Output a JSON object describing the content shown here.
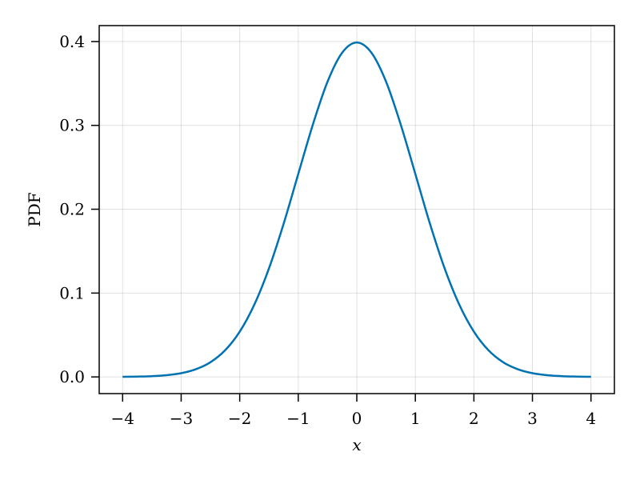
{
  "chart_data": {
    "type": "line",
    "title": "",
    "xlabel": "x",
    "ylabel": "PDF",
    "xlim": [
      -4.4,
      4.4
    ],
    "ylim": [
      -0.0199,
      0.419
    ],
    "grid": true,
    "xticks": [
      -4,
      -3,
      -2,
      -1,
      0,
      1,
      2,
      3,
      4
    ],
    "xtick_labels": [
      "−4",
      "−3",
      "−2",
      "−1",
      "0",
      "1",
      "2",
      "3",
      "4"
    ],
    "yticks": [
      0.0,
      0.1,
      0.2,
      0.3,
      0.4
    ],
    "ytick_labels": [
      "0.0",
      "0.1",
      "0.2",
      "0.3",
      "0.4"
    ],
    "line_color": "#0072b2",
    "series": [
      {
        "x": [
          -4,
          -3.75,
          -3.5,
          -3.25,
          -3,
          -2.75,
          -2.5,
          -2.25,
          -2,
          -1.75,
          -1.5,
          -1.25,
          -1,
          -0.75,
          -0.5,
          -0.25,
          0,
          0.25,
          0.5,
          0.75,
          1,
          1.25,
          1.5,
          1.75,
          2,
          2.25,
          2.5,
          2.75,
          3,
          3.25,
          3.5,
          3.75,
          4
        ],
        "y": [
          0.0001,
          0.0004,
          0.0009,
          0.002,
          0.0044,
          0.0091,
          0.0175,
          0.0317,
          0.054,
          0.0863,
          0.1295,
          0.1826,
          0.242,
          0.3011,
          0.3521,
          0.3867,
          0.3989,
          0.3867,
          0.3521,
          0.3011,
          0.242,
          0.1826,
          0.1295,
          0.0863,
          0.054,
          0.0317,
          0.0175,
          0.0091,
          0.0044,
          0.002,
          0.0009,
          0.0004,
          0.0001
        ]
      }
    ]
  }
}
